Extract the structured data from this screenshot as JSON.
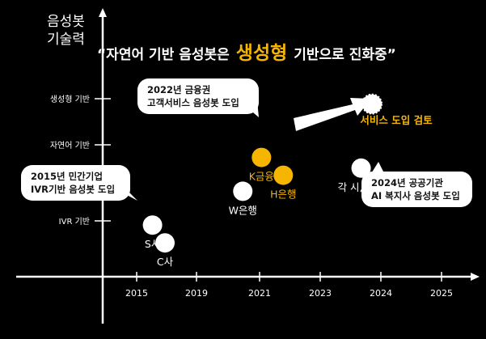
{
  "axis_title": {
    "line1": "음성봇",
    "line2": "기술력"
  },
  "headline": {
    "before": "“자연어 기반 음성봇은",
    "accent": "생성형",
    "after": "기반으로 진화중”"
  },
  "colors": {
    "background": "#000000",
    "accent": "#f6b500",
    "point": "#ffffff",
    "text": "#ffffff"
  },
  "chart_data": {
    "type": "scatter",
    "x_ticks": [
      "2015",
      "2019",
      "2021",
      "2023",
      "2024",
      "2025"
    ],
    "y_ticks": [
      "IVR 기반",
      "자연어 기반",
      "생성형 기반"
    ],
    "points": [
      {
        "label": "S사",
        "x": 1.6,
        "y": 1.45,
        "color": "#ffffff",
        "label_pos": "below"
      },
      {
        "label": "C사",
        "x": 2.0,
        "y": 0.95,
        "color": "#ffffff",
        "label_pos": "below"
      },
      {
        "label": "W은행",
        "x": 4.5,
        "y": 2.4,
        "color": "#ffffff",
        "label_pos": "below"
      },
      {
        "label": "K금융",
        "x": 5.1,
        "y": 3.35,
        "color": "#f6b500",
        "label_pos": "below"
      },
      {
        "label": "H은행",
        "x": 5.8,
        "y": 2.85,
        "color": "#f6b500",
        "label_pos": "below"
      },
      {
        "label": "각 시, 도청",
        "x": 8.3,
        "y": 3.05,
        "color": "#ffffff",
        "label_pos": "below"
      },
      {
        "label": "",
        "x": 8.65,
        "y": 4.85,
        "color": "#ffffff",
        "label_pos": "none",
        "dashed": true
      }
    ],
    "annotations": [
      {
        "text": "서비스 도입 검토",
        "color": "#f6b500"
      }
    ],
    "callouts": [
      {
        "lines": [
          "2015년 민간기업",
          "IVR기반 음성봇 도입"
        ]
      },
      {
        "lines": [
          "2022년 금융권",
          "고객서비스 음성봇 도입"
        ]
      },
      {
        "lines": [
          "2024년 공공기관",
          "AI 복지사 음성봇 도입"
        ]
      }
    ]
  }
}
